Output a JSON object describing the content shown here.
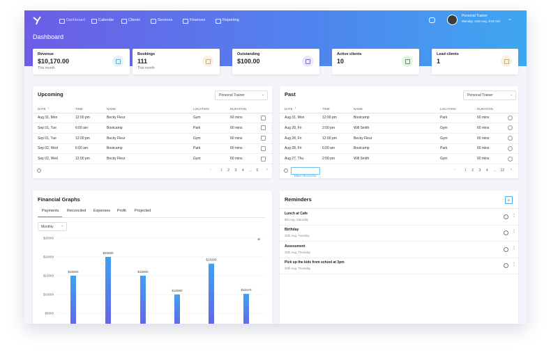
{
  "nav": {
    "items": [
      "Dashboard",
      "Calendar",
      "Clients",
      "Services",
      "Finances",
      "Reporting"
    ]
  },
  "user": {
    "name": "Personal Trainer",
    "date": "Monday, 21st Aug, 9:32 AM"
  },
  "page_title": "Dashboard",
  "stats": [
    {
      "label": "Revenue",
      "value": "$10,170.00",
      "sub": "This month"
    },
    {
      "label": "Bookings",
      "value": "111",
      "sub": "This month"
    },
    {
      "label": "Outstanding",
      "value": "$100.00"
    },
    {
      "label": "Active clients",
      "value": "10"
    },
    {
      "label": "Lead clients",
      "value": "1"
    }
  ],
  "upcoming": {
    "title": "Upcoming",
    "filter": "Personal Trainer",
    "columns": [
      "DATE",
      "TIME",
      "NAME",
      "LOCATION",
      "DURATION"
    ],
    "rows": [
      [
        "Aug 31, Mon",
        "12:00 pm",
        "Becky Fleur",
        "Gym",
        "60 mins"
      ],
      [
        "Sep 01, Tue",
        "6:00 am",
        "Bootcamp",
        "Park",
        "60 mins"
      ],
      [
        "Sep 01, Tue",
        "12:00 pm",
        "Becky Fleur",
        "Gym",
        "60 mins"
      ],
      [
        "Sep 02, Wed",
        "6:00 am",
        "Bootcamp",
        "Park",
        "60 mins"
      ],
      [
        "Sep 02, Wed",
        "12:00 pm",
        "Becky Fleur",
        "Gym",
        "60 mins"
      ]
    ],
    "pages": [
      "1",
      "2",
      "3",
      "4",
      "...",
      "5"
    ]
  },
  "past": {
    "title": "Past",
    "filter": "Personal Trainer",
    "columns": [
      "DATE",
      "TIME",
      "NAME",
      "LOCATION",
      "DURATION"
    ],
    "rows": [
      [
        "Aug 31, Mon",
        "12:00 pm",
        "Bootcamp",
        "Park",
        "60 mins"
      ],
      [
        "Aug 28, Fri",
        "2:00 pm",
        "Will Smith",
        "Gym",
        "60 mins"
      ],
      [
        "Aug 28, Fri",
        "12:00 pm",
        "Becky Fleur",
        "Gym",
        "60 mins"
      ],
      [
        "Aug 28, Fri",
        "6:00 am",
        "Bootcamp",
        "Park",
        "60 mins"
      ],
      [
        "Aug 27, Thu",
        "2:00 pm",
        "Will Smith",
        "Gym",
        "60 mins"
      ]
    ],
    "action": "Mass Reconcile",
    "pages": [
      "1",
      "2",
      "3",
      "4",
      "...",
      "12"
    ]
  },
  "financial": {
    "title": "Financial Graphs",
    "tabs": [
      "Payments",
      "Reconciled",
      "Expenses",
      "Profit",
      "Projected"
    ],
    "period": "Monthly",
    "chart": {
      "type": "bar",
      "values": [
        15000,
        20000,
        15000,
        10000,
        18200,
        10170
      ],
      "value_labels": [
        "$15000",
        "$20000",
        "$15000",
        "$10000",
        "$18200",
        "$10170"
      ],
      "ylim": [
        0,
        25000
      ],
      "yticks": [
        {
          "value": 5000,
          "label": "$5000"
        },
        {
          "value": 10000,
          "label": "$10000"
        },
        {
          "value": 15000,
          "label": "$15000"
        },
        {
          "value": 20000,
          "label": "$20000"
        },
        {
          "value": 25000,
          "label": "$25000"
        }
      ]
    }
  },
  "reminders": {
    "title": "Reminders",
    "items": [
      {
        "title": "Lunch at Cafe",
        "date": "8th Aug, Saturday"
      },
      {
        "title": "Birthday",
        "date": "10th Aug, Tuesday"
      },
      {
        "title": "Assessment",
        "date": "15th Aug, Thursday"
      },
      {
        "title": "Pick up the kids from school at 3pm",
        "date": "20th Aug, Thursday"
      }
    ]
  }
}
